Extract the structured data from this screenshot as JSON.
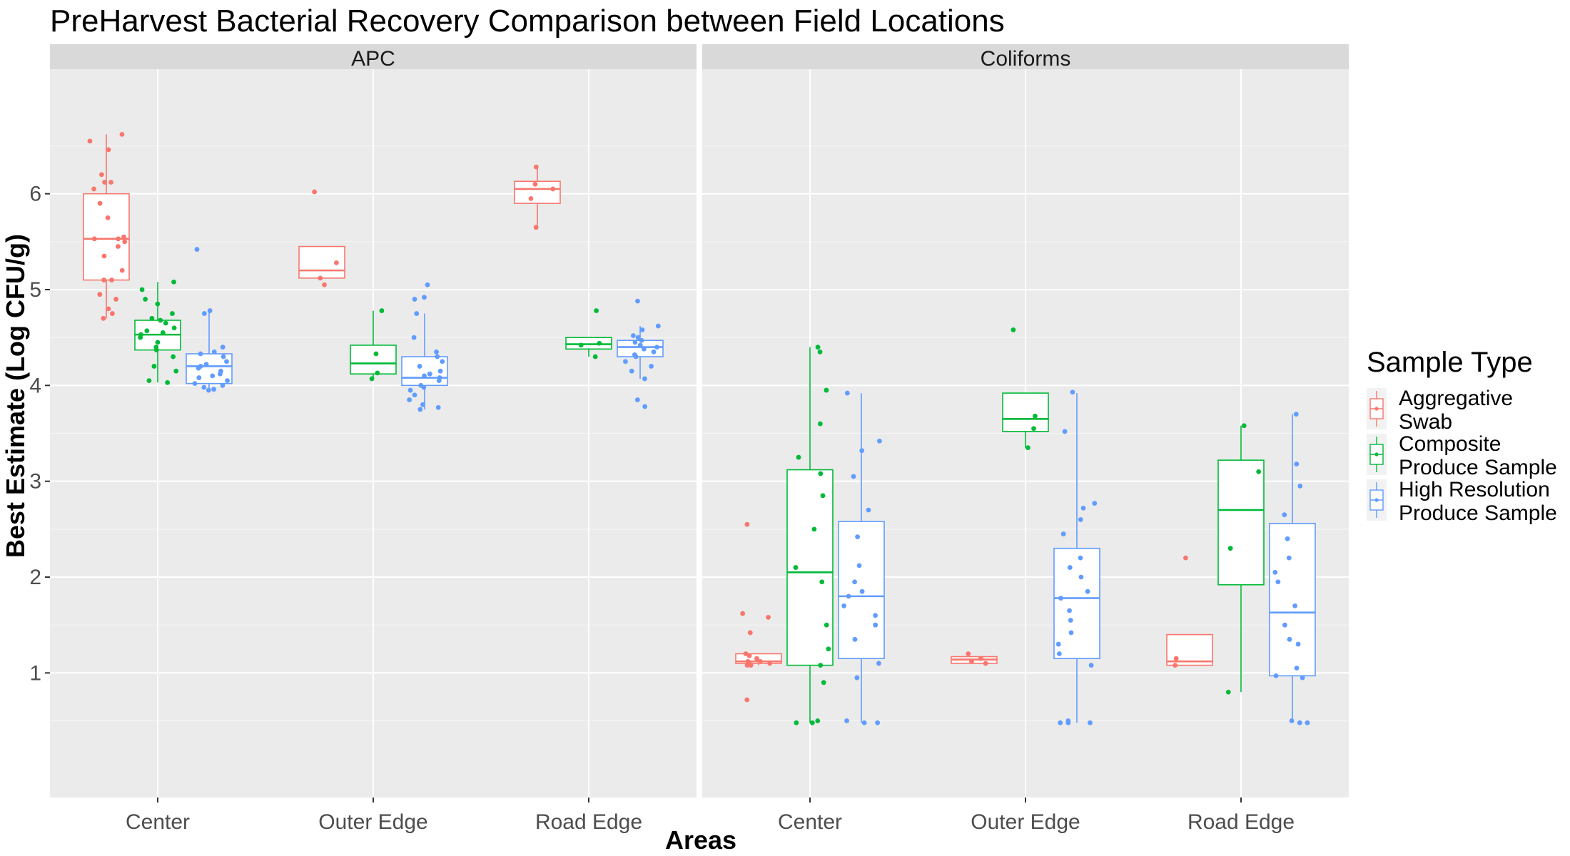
{
  "chart_data": {
    "type": "box",
    "title": "PreHarvest Bacterial Recovery Comparison between Field Locations",
    "xlabel": "Areas",
    "ylabel": "Best Estimate (Log CFU/g)",
    "ylim": [
      -0.3,
      7.3
    ],
    "y_ticks": [
      1,
      2,
      3,
      4,
      5,
      6
    ],
    "categories": [
      "Center",
      "Outer Edge",
      "Road Edge"
    ],
    "legend": {
      "title": "Sample Type",
      "position": "right"
    },
    "series": [
      {
        "name": "Aggregative Swab",
        "label_lines": [
          "Aggregative",
          "Swab"
        ],
        "color": "#F8766D"
      },
      {
        "name": "Composite Produce Sample",
        "label_lines": [
          "Composite",
          "Produce Sample"
        ],
        "color": "#00BA38"
      },
      {
        "name": "High Resolution Produce Sample",
        "label_lines": [
          "High Resolution",
          "Produce Sample"
        ],
        "color": "#619CFF"
      }
    ],
    "panels": [
      {
        "name": "APC",
        "boxes": [
          {
            "category": "Center",
            "series": 0,
            "min": 4.7,
            "q1": 5.1,
            "median": 5.53,
            "q3": 6.0,
            "max": 6.62,
            "points": [
              6.62,
              6.55,
              6.46,
              6.2,
              6.12,
              6.12,
              6.05,
              5.9,
              5.75,
              5.55,
              5.53,
              5.53,
              5.5,
              5.45,
              5.35,
              5.2,
              5.1,
              5.1,
              4.95,
              4.9,
              4.8,
              4.75,
              4.7
            ]
          },
          {
            "category": "Center",
            "series": 1,
            "min": 4.03,
            "q1": 4.37,
            "median": 4.53,
            "q3": 4.68,
            "max": 5.08,
            "points": [
              5.08,
              5.0,
              4.9,
              4.85,
              4.75,
              4.7,
              4.68,
              4.65,
              4.6,
              4.57,
              4.55,
              4.53,
              4.5,
              4.45,
              4.4,
              4.37,
              4.3,
              4.2,
              4.15,
              4.05,
              4.03
            ]
          },
          {
            "category": "Center",
            "series": 2,
            "min": 3.95,
            "q1": 4.02,
            "median": 4.2,
            "q3": 4.33,
            "max": 4.78,
            "points": [
              5.42,
              4.78,
              4.75,
              4.4,
              4.35,
              4.33,
              4.3,
              4.25,
              4.22,
              4.2,
              4.18,
              4.15,
              4.12,
              4.1,
              4.08,
              4.05,
              4.02,
              4.0,
              3.98,
              3.96,
              3.95
            ]
          },
          {
            "category": "Outer Edge",
            "series": 0,
            "min": 5.1,
            "q1": 5.12,
            "median": 5.2,
            "q3": 5.45,
            "max": 5.45,
            "points": [
              6.02,
              5.28,
              5.12,
              5.05
            ]
          },
          {
            "category": "Outer Edge",
            "series": 1,
            "min": 4.05,
            "q1": 4.12,
            "median": 4.23,
            "q3": 4.42,
            "max": 4.78,
            "points": [
              4.78,
              4.33,
              4.13,
              4.07
            ]
          },
          {
            "category": "Outer Edge",
            "series": 2,
            "min": 3.75,
            "q1": 4.0,
            "median": 4.08,
            "q3": 4.3,
            "max": 4.75,
            "points": [
              5.05,
              4.92,
              4.9,
              4.75,
              4.5,
              4.35,
              4.3,
              4.25,
              4.2,
              4.15,
              4.12,
              4.1,
              4.08,
              4.05,
              4.0,
              3.98,
              3.95,
              3.9,
              3.85,
              3.8,
              3.77,
              3.75
            ]
          },
          {
            "category": "Road Edge",
            "series": 0,
            "min": 5.65,
            "q1": 5.9,
            "median": 6.05,
            "q3": 6.13,
            "max": 6.28,
            "points": [
              6.28,
              6.1,
              6.05,
              5.95,
              5.65
            ]
          },
          {
            "category": "Road Edge",
            "series": 1,
            "min": 4.3,
            "q1": 4.38,
            "median": 4.43,
            "q3": 4.5,
            "max": 4.5,
            "points": [
              4.78,
              4.44,
              4.42,
              4.3
            ]
          },
          {
            "category": "Road Edge",
            "series": 2,
            "min": 4.07,
            "q1": 4.3,
            "median": 4.4,
            "q3": 4.47,
            "max": 4.62,
            "points": [
              4.88,
              4.62,
              4.58,
              4.52,
              4.5,
              4.47,
              4.45,
              4.42,
              4.4,
              4.38,
              4.35,
              4.32,
              4.3,
              4.25,
              4.2,
              4.15,
              4.07,
              3.85,
              3.78
            ]
          }
        ]
      },
      {
        "name": "Coliforms",
        "boxes": [
          {
            "category": "Center",
            "series": 0,
            "min": 1.08,
            "q1": 1.1,
            "median": 1.12,
            "q3": 1.2,
            "max": 1.2,
            "points": [
              2.55,
              1.62,
              1.58,
              1.42,
              1.2,
              1.18,
              1.15,
              1.12,
              1.12,
              1.1,
              1.1,
              1.08,
              1.08,
              0.72
            ]
          },
          {
            "category": "Center",
            "series": 1,
            "min": 0.48,
            "q1": 1.08,
            "median": 2.05,
            "q3": 3.12,
            "max": 4.4,
            "points": [
              4.4,
              4.35,
              3.95,
              3.6,
              3.25,
              3.08,
              2.85,
              2.5,
              2.1,
              1.95,
              1.5,
              1.25,
              1.08,
              0.9,
              0.5,
              0.48,
              0.48
            ]
          },
          {
            "category": "Center",
            "series": 2,
            "min": 0.48,
            "q1": 1.15,
            "median": 1.8,
            "q3": 2.58,
            "max": 3.92,
            "points": [
              3.92,
              3.42,
              3.32,
              3.05,
              2.7,
              2.42,
              2.12,
              1.95,
              1.85,
              1.8,
              1.7,
              1.6,
              1.5,
              1.35,
              1.1,
              0.95,
              0.5,
              0.48,
              0.48
            ]
          },
          {
            "category": "Outer Edge",
            "series": 0,
            "min": 1.1,
            "q1": 1.1,
            "median": 1.14,
            "q3": 1.17,
            "max": 1.17,
            "points": [
              1.2,
              1.15,
              1.12,
              1.1
            ]
          },
          {
            "category": "Outer Edge",
            "series": 1,
            "min": 3.35,
            "q1": 3.52,
            "median": 3.65,
            "q3": 3.92,
            "max": 3.92,
            "points": [
              4.58,
              3.68,
              3.55,
              3.35
            ]
          },
          {
            "category": "Outer Edge",
            "series": 2,
            "min": 0.48,
            "q1": 1.15,
            "median": 1.78,
            "q3": 2.3,
            "max": 3.92,
            "points": [
              3.93,
              3.52,
              2.77,
              2.72,
              2.6,
              2.45,
              2.2,
              2.1,
              2.0,
              1.85,
              1.78,
              1.65,
              1.55,
              1.42,
              1.3,
              1.2,
              1.08,
              0.5,
              0.48,
              0.48,
              0.48
            ]
          },
          {
            "category": "Road Edge",
            "series": 0,
            "min": 1.08,
            "q1": 1.08,
            "median": 1.12,
            "q3": 1.4,
            "max": 1.4,
            "points": [
              2.2,
              1.15,
              1.08
            ]
          },
          {
            "category": "Road Edge",
            "series": 1,
            "min": 0.8,
            "q1": 1.92,
            "median": 2.7,
            "q3": 3.22,
            "max": 3.58,
            "points": [
              3.58,
              3.1,
              2.3,
              0.8
            ]
          },
          {
            "category": "Road Edge",
            "series": 2,
            "min": 0.48,
            "q1": 0.97,
            "median": 1.63,
            "q3": 2.56,
            "max": 3.7,
            "points": [
              3.7,
              3.18,
              2.95,
              2.65,
              2.4,
              2.2,
              2.05,
              1.95,
              1.7,
              1.5,
              1.35,
              1.3,
              1.05,
              0.97,
              0.95,
              0.5,
              0.48,
              0.48
            ]
          }
        ]
      }
    ]
  }
}
